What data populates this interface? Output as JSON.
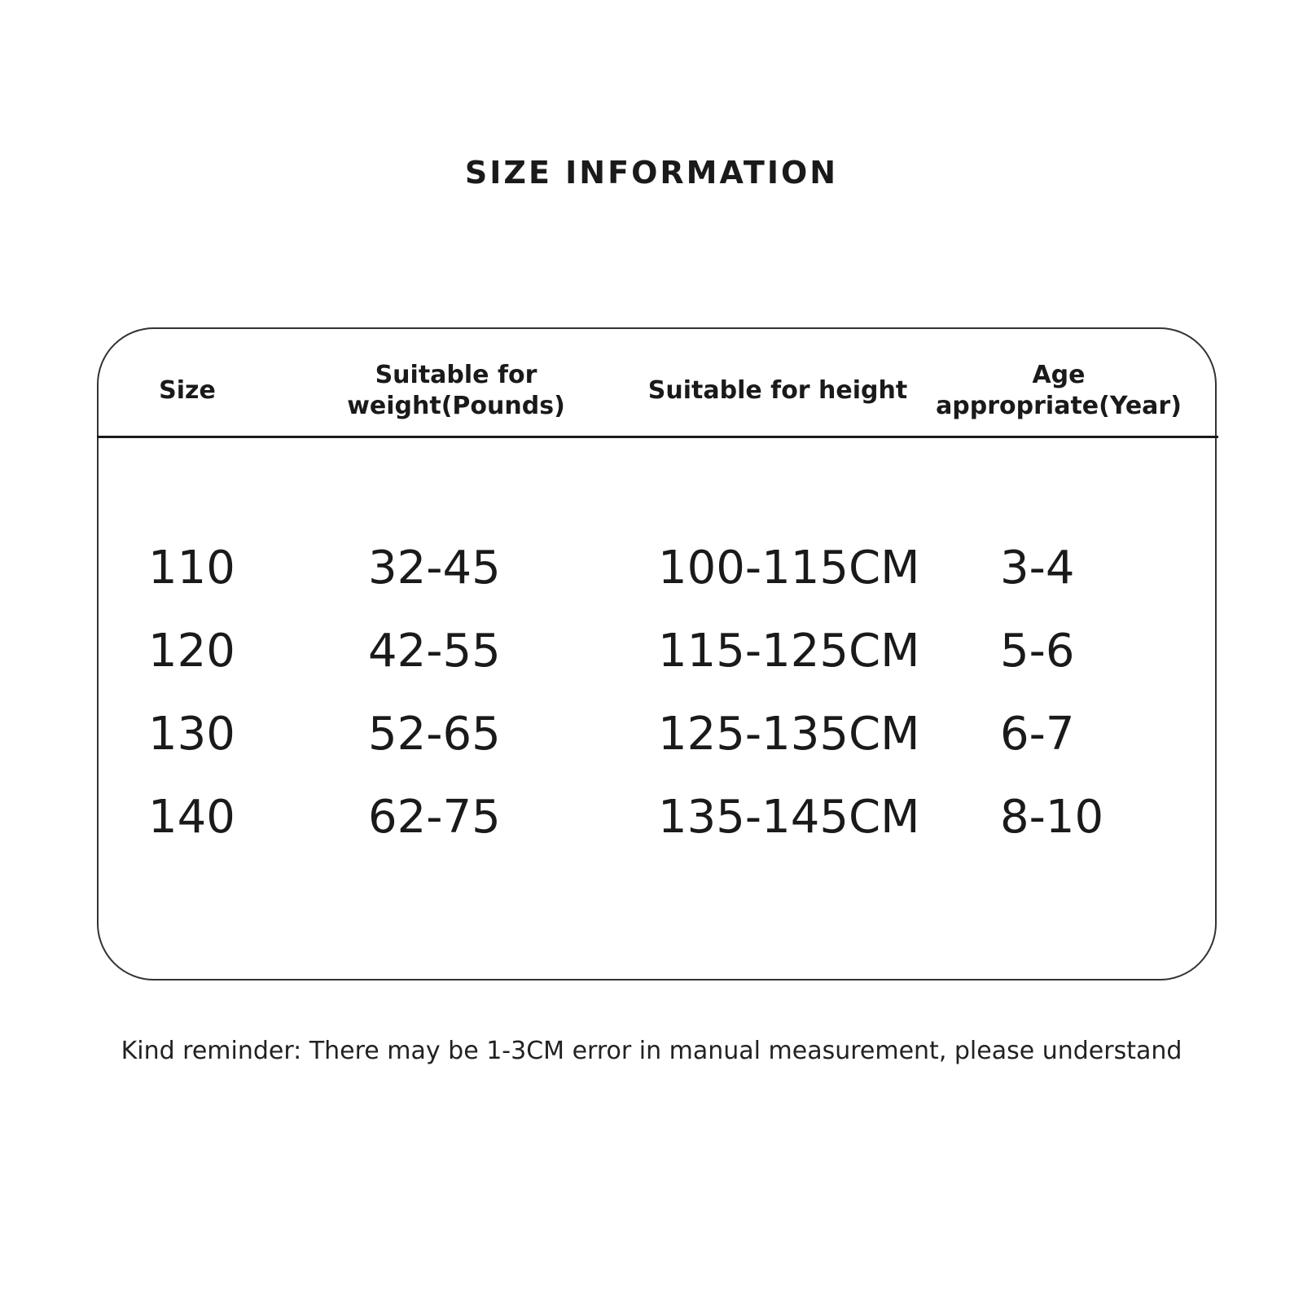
{
  "title": "SIZE INFORMATION",
  "table": {
    "headers": [
      "Size",
      "Suitable for weight(Pounds)",
      "Suitable for height",
      "Age appropriate(Year)"
    ],
    "header_lines": [
      [
        "Size"
      ],
      [
        "Suitable for",
        "weight(Pounds)"
      ],
      [
        "Suitable for height"
      ],
      [
        "Age",
        "appropriate(Year)"
      ]
    ],
    "rows": [
      [
        "110",
        "32-45",
        "100-115CM",
        "3-4"
      ],
      [
        "120",
        "42-55",
        "115-125CM",
        "5-6"
      ],
      [
        "130",
        "52-65",
        "125-135CM",
        "6-7"
      ],
      [
        "140",
        "62-75",
        "135-145CM",
        "8-10"
      ]
    ]
  },
  "note": "Kind reminder: There may be 1-3CM error in manual measurement, please understand"
}
